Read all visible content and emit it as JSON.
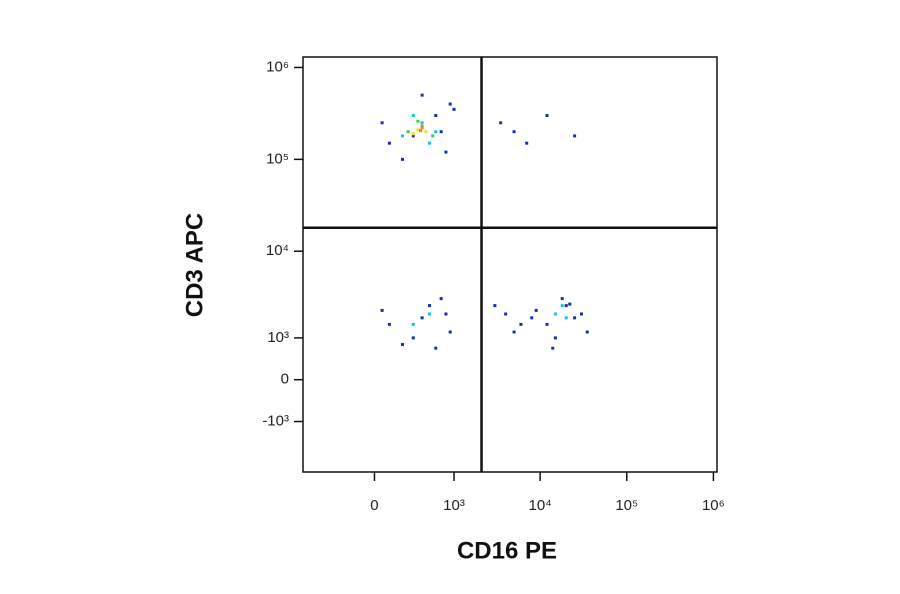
{
  "chart_data": {
    "type": "scatter",
    "x_label": "CD16 PE",
    "y_label": "CD3 APC",
    "scale": "asinh",
    "xlim": [
      -800,
      1100000
    ],
    "ylim": [
      -4000,
      1300000
    ],
    "xticks": [
      0,
      {
        "value": 1000,
        "label": "10³"
      },
      {
        "value": 10000,
        "label": "10⁴"
      },
      {
        "value": 100000,
        "label": "10⁵"
      },
      {
        "value": 1000000,
        "label": "10⁶"
      }
    ],
    "yticks": [
      {
        "value": -1000,
        "label": "-10³"
      },
      0,
      {
        "value": 1000,
        "label": "10³"
      },
      {
        "value": 10000,
        "label": "10⁴"
      },
      {
        "value": 100000,
        "label": "10⁵"
      },
      {
        "value": 1000000,
        "label": "10⁶"
      }
    ],
    "quadrant_x": 2100,
    "quadrant_y": 18000,
    "series": [
      {
        "color": "#1030b0",
        "x": [
          100,
          600,
          900,
          50,
          800,
          400,
          200,
          700,
          1000,
          300,
          100,
          500,
          900,
          200,
          700,
          300,
          800,
          50,
          600,
          400,
          12000,
          20000,
          30000,
          15000,
          25000,
          9000,
          18000,
          35000,
          14000,
          22000,
          4000,
          6000,
          3000,
          5000,
          8000,
          3500,
          5000,
          7000,
          12000,
          25000
        ],
        "y": [
          150000,
          300000,
          400000,
          250000,
          120000,
          500000,
          100000,
          200000,
          350000,
          180000,
          1500,
          2500,
          1200,
          800,
          3000,
          1000,
          2000,
          2200,
          700,
          1800,
          1500,
          2500,
          2000,
          1000,
          1800,
          2200,
          3000,
          1200,
          700,
          2600,
          2000,
          1500,
          2500,
          1200,
          1800,
          250000,
          200000,
          150000,
          300000,
          180000
        ]
      },
      {
        "color": "#19c0e0",
        "x": [
          200,
          400,
          600,
          300,
          500,
          15000,
          20000,
          18000,
          300,
          500
        ],
        "y": [
          180000,
          250000,
          200000,
          300000,
          150000,
          2000,
          1800,
          2500,
          1500,
          2000
        ]
      },
      {
        "color": "#3ccc48",
        "x": [
          250,
          400,
          550,
          350
        ],
        "y": [
          200000,
          230000,
          180000,
          260000
        ]
      },
      {
        "color": "#f0dc20",
        "x": [
          350,
          450,
          300
        ],
        "y": [
          210000,
          200000,
          190000
        ]
      },
      {
        "color": "#f08020",
        "x": [
          400,
          380
        ],
        "y": [
          220000,
          205000
        ]
      }
    ]
  }
}
